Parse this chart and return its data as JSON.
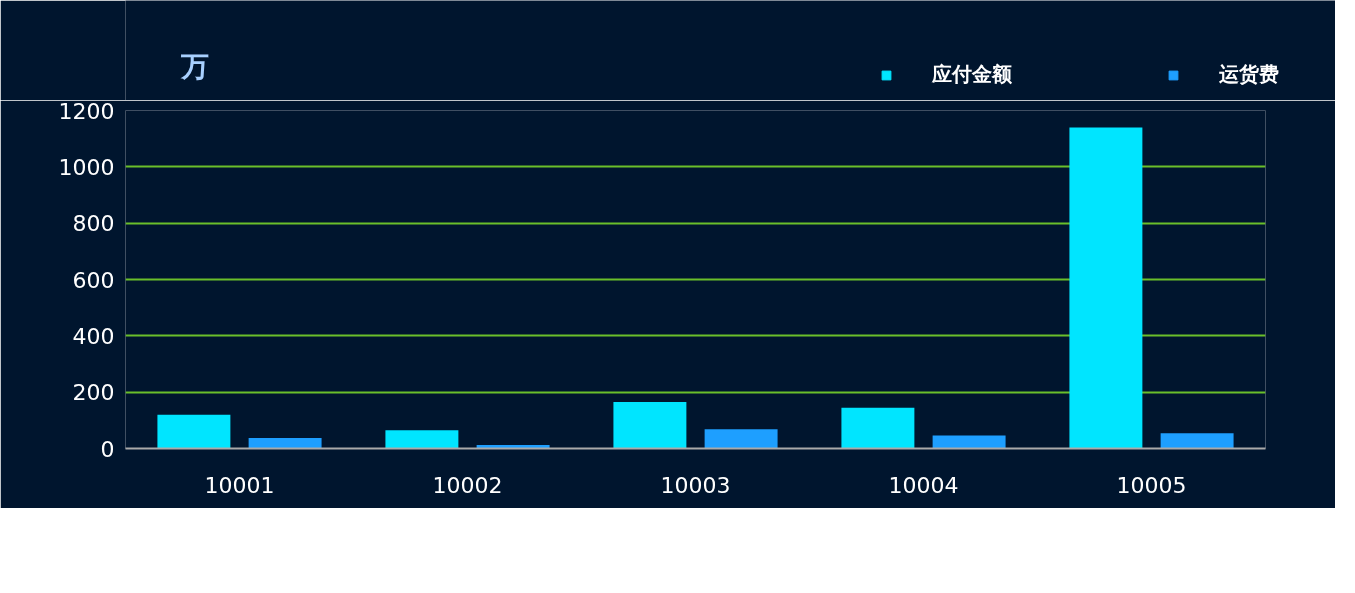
{
  "chart_data": {
    "type": "bar",
    "ylabel": "万",
    "categories": [
      "10001",
      "10002",
      "10003",
      "10004",
      "10005"
    ],
    "series": [
      {
        "name": "应付金额",
        "color": "#00e5ff",
        "values": [
          120,
          65,
          165,
          145,
          1140
        ]
      },
      {
        "name": "运货费",
        "color": "#1e9fff",
        "values": [
          37,
          12,
          68,
          46,
          54
        ]
      }
    ],
    "ylim": [
      0,
      1200
    ],
    "yticks": [
      0,
      200,
      400,
      600,
      800,
      1000,
      1200
    ],
    "grid": "y",
    "legend": "top right"
  }
}
